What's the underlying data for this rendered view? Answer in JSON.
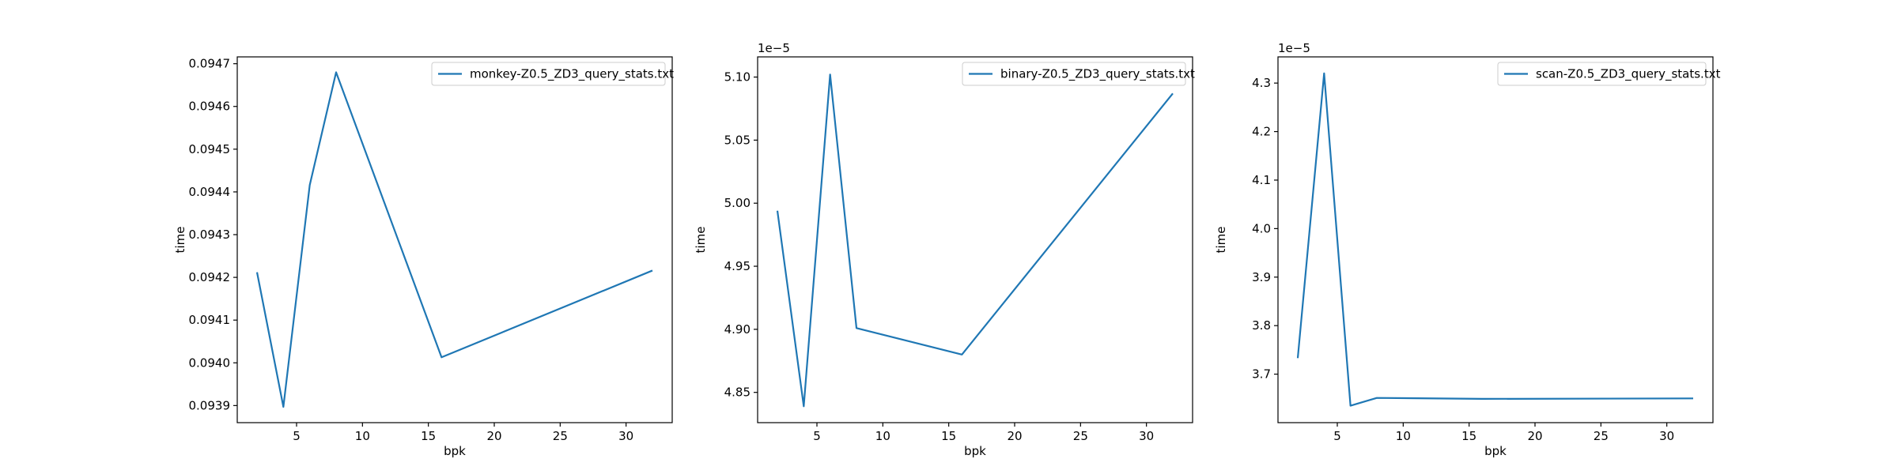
{
  "chart_data": [
    {
      "type": "line",
      "xlabel": "bpk",
      "ylabel": "time",
      "offset_text": "",
      "xlim": [
        0.5,
        33.5
      ],
      "ylim": [
        0.09386,
        0.094716
      ],
      "xticks": [
        5,
        10,
        15,
        20,
        25,
        30
      ],
      "xtick_labels": [
        "5",
        "10",
        "15",
        "20",
        "25",
        "30"
      ],
      "yticks": [
        0.0939,
        0.094,
        0.0941,
        0.0942,
        0.0943,
        0.0944,
        0.0945,
        0.0946,
        0.0947
      ],
      "ytick_labels": [
        "0.0939",
        "0.0940",
        "0.0941",
        "0.0942",
        "0.0943",
        "0.0944",
        "0.0945",
        "0.0946",
        "0.0947"
      ],
      "grid": false,
      "legend_position": "top-right",
      "series": [
        {
          "name": "monkey-Z0.5_ZD3_query_stats.txt",
          "color": "#1f77b4",
          "x": [
            2,
            4,
            6,
            8,
            16,
            32
          ],
          "y": [
            0.094212,
            0.093897,
            0.094416,
            0.09468,
            0.094013,
            0.094216
          ]
        }
      ]
    },
    {
      "type": "line",
      "xlabel": "bpk",
      "ylabel": "time",
      "offset_text": "1e−5",
      "xlim": [
        0.5,
        33.5
      ],
      "ylim": [
        4.826,
        5.116
      ],
      "xticks": [
        5,
        10,
        15,
        20,
        25,
        30
      ],
      "xtick_labels": [
        "5",
        "10",
        "15",
        "20",
        "25",
        "30"
      ],
      "yticks": [
        4.85,
        4.9,
        4.95,
        5.0,
        5.05,
        5.1
      ],
      "ytick_labels": [
        "4.85",
        "4.90",
        "4.95",
        "5.00",
        "5.05",
        "5.10"
      ],
      "grid": false,
      "legend_position": "top-right",
      "series": [
        {
          "name": "binary-Z0.5_ZD3_query_stats.txt",
          "color": "#1f77b4",
          "x": [
            2,
            4,
            6,
            8,
            16,
            32
          ],
          "y": [
            4.994,
            4.839,
            5.102,
            4.901,
            4.88,
            5.087
          ]
        }
      ]
    },
    {
      "type": "line",
      "xlabel": "bpk",
      "ylabel": "time",
      "offset_text": "1e−5",
      "xlim": [
        0.5,
        33.5
      ],
      "ylim": [
        3.6,
        4.354
      ],
      "xticks": [
        5,
        10,
        15,
        20,
        25,
        30
      ],
      "xtick_labels": [
        "5",
        "10",
        "15",
        "20",
        "25",
        "30"
      ],
      "yticks": [
        3.7,
        3.8,
        3.9,
        4.0,
        4.1,
        4.2,
        4.3
      ],
      "ytick_labels": [
        "3.7",
        "3.8",
        "3.9",
        "4.0",
        "4.1",
        "4.2",
        "4.3"
      ],
      "grid": false,
      "legend_position": "top-right",
      "series": [
        {
          "name": "scan-Z0.5_ZD3_query_stats.txt",
          "color": "#1f77b4",
          "x": [
            2,
            4,
            6,
            8,
            16,
            32
          ],
          "y": [
            3.733,
            4.32,
            3.635,
            3.651,
            3.649,
            3.65
          ]
        }
      ]
    }
  ]
}
